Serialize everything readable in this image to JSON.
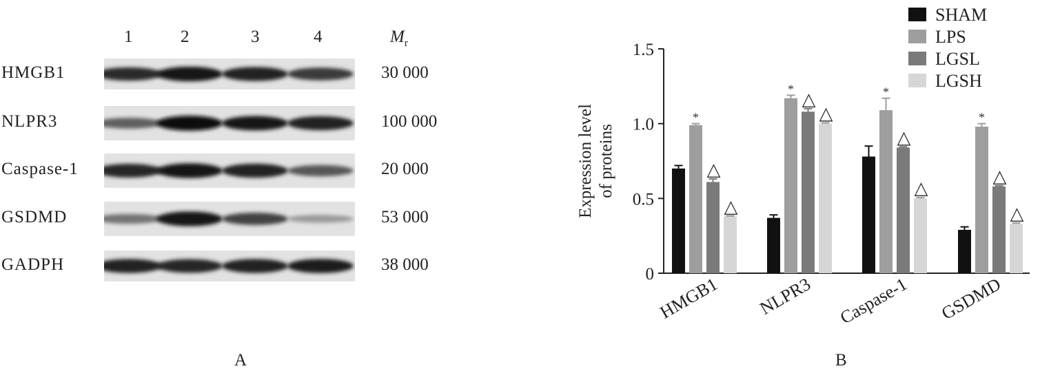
{
  "panel_a": {
    "letter": "A",
    "lanes": [
      "1",
      "2",
      "3",
      "4"
    ],
    "mr_symbol": "M",
    "mr_subscript": "r",
    "rows": [
      {
        "protein": "HMGB1",
        "mw": "30 000",
        "bands": [
          0.82,
          0.95,
          0.88,
          0.75
        ]
      },
      {
        "protein": "NLPR3",
        "mw": "100 000",
        "bands": [
          0.55,
          0.98,
          0.92,
          0.88
        ]
      },
      {
        "protein": "Caspase-1",
        "mw": "20 000",
        "bands": [
          0.85,
          0.95,
          0.88,
          0.6
        ]
      },
      {
        "protein": "GSDMD",
        "mw": "53 000",
        "bands": [
          0.45,
          0.95,
          0.7,
          0.25
        ]
      },
      {
        "protein": "GADPH",
        "mw": "38 000",
        "bands": [
          0.88,
          0.85,
          0.88,
          0.9
        ]
      }
    ]
  },
  "panel_b": {
    "letter": "B"
  },
  "chart_data": {
    "type": "bar",
    "ylabel_lines": [
      "Expression level",
      "of proteins"
    ],
    "ylim": [
      0,
      1.5
    ],
    "yticks": [
      0,
      0.5,
      1.0,
      1.5
    ],
    "ytick_labels": [
      "0",
      "0.5",
      "1.0",
      "1.5"
    ],
    "categories": [
      "HMGB1",
      "NLPR3",
      "Caspase-1",
      "GSDMD"
    ],
    "legend_position": "top-right",
    "series": [
      {
        "name": "SHAM",
        "color": "#111111",
        "values": [
          0.7,
          0.37,
          0.78,
          0.29
        ],
        "errors": [
          0.02,
          0.02,
          0.07,
          0.02
        ],
        "marks": [
          "",
          "",
          "",
          ""
        ]
      },
      {
        "name": "LPS",
        "color": "#9e9e9e",
        "values": [
          0.99,
          1.17,
          1.09,
          0.98
        ],
        "errors": [
          0.01,
          0.02,
          0.08,
          0.02
        ],
        "marks": [
          "*",
          "*",
          "*",
          "*"
        ]
      },
      {
        "name": "LGSL",
        "color": "#7a7a7a",
        "values": [
          0.61,
          1.08,
          0.84,
          0.58
        ],
        "errors": [
          0.02,
          0.02,
          0.005,
          0.005
        ],
        "marks": [
          "△",
          "△",
          "△",
          "△"
        ]
      },
      {
        "name": "LGSH",
        "color": "#d6d6d6",
        "values": [
          0.38,
          1.0,
          0.5,
          0.33
        ],
        "errors": [
          0.003,
          0.005,
          0.005,
          0.005
        ],
        "marks": [
          "△",
          "△",
          "△",
          "△"
        ]
      }
    ]
  }
}
